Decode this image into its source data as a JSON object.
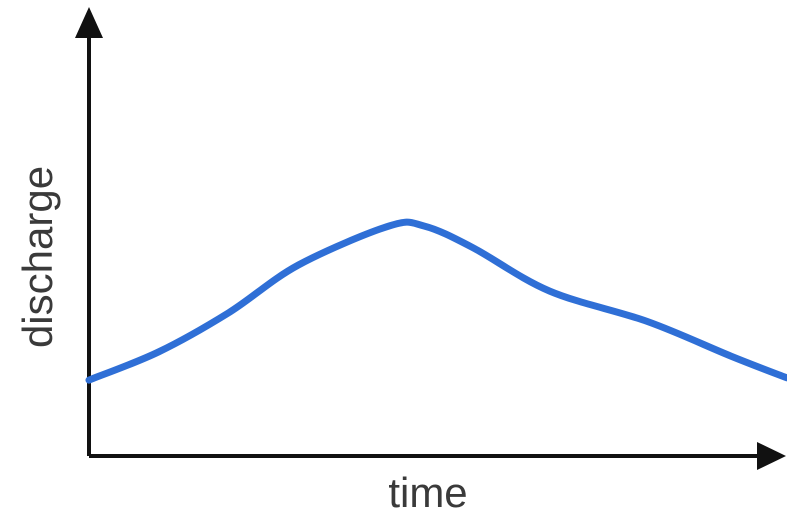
{
  "chart_data": {
    "type": "line",
    "title": "",
    "xlabel": "time",
    "ylabel": "discharge",
    "grid": false,
    "legend": "none",
    "xlim": [
      0,
      10
    ],
    "ylim": [
      0,
      10
    ],
    "series": [
      {
        "color": "#2f6fd6",
        "points": [
          [
            0.0,
            1.75
          ],
          [
            1.0,
            2.4
          ],
          [
            2.0,
            3.3
          ],
          [
            3.0,
            4.4
          ],
          [
            4.3,
            5.3
          ],
          [
            4.8,
            5.3
          ],
          [
            5.5,
            4.8
          ],
          [
            6.6,
            3.8
          ],
          [
            8.0,
            3.1
          ],
          [
            9.2,
            2.3
          ],
          [
            10.0,
            1.8
          ]
        ]
      }
    ]
  },
  "colors": {
    "axis": "#111111",
    "series": "#2f6fd6",
    "label": "#3a3a3a"
  }
}
